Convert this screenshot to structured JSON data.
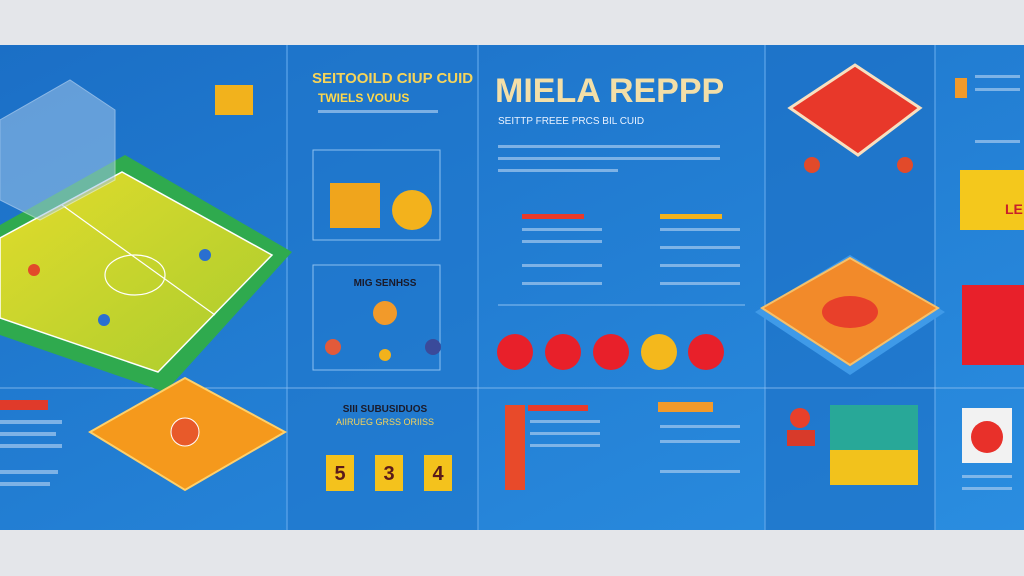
{
  "header": {
    "title": "MIELA REPPP",
    "subtitle": "SEITTP FREEE PRCS BIL CUID"
  },
  "panel_2": {
    "heading": "SEITOOILD CIUP CUID",
    "subheading": "TWIELS VOUUS",
    "card_label": "MIG SENHSS",
    "stats_heading": "SIII SUBUSIDUOS",
    "stats_subheading": "AIIRUEG GRSS ORIISS",
    "scores": [
      "5",
      "3",
      "4"
    ]
  },
  "panel_5": {
    "badge": "LE"
  }
}
